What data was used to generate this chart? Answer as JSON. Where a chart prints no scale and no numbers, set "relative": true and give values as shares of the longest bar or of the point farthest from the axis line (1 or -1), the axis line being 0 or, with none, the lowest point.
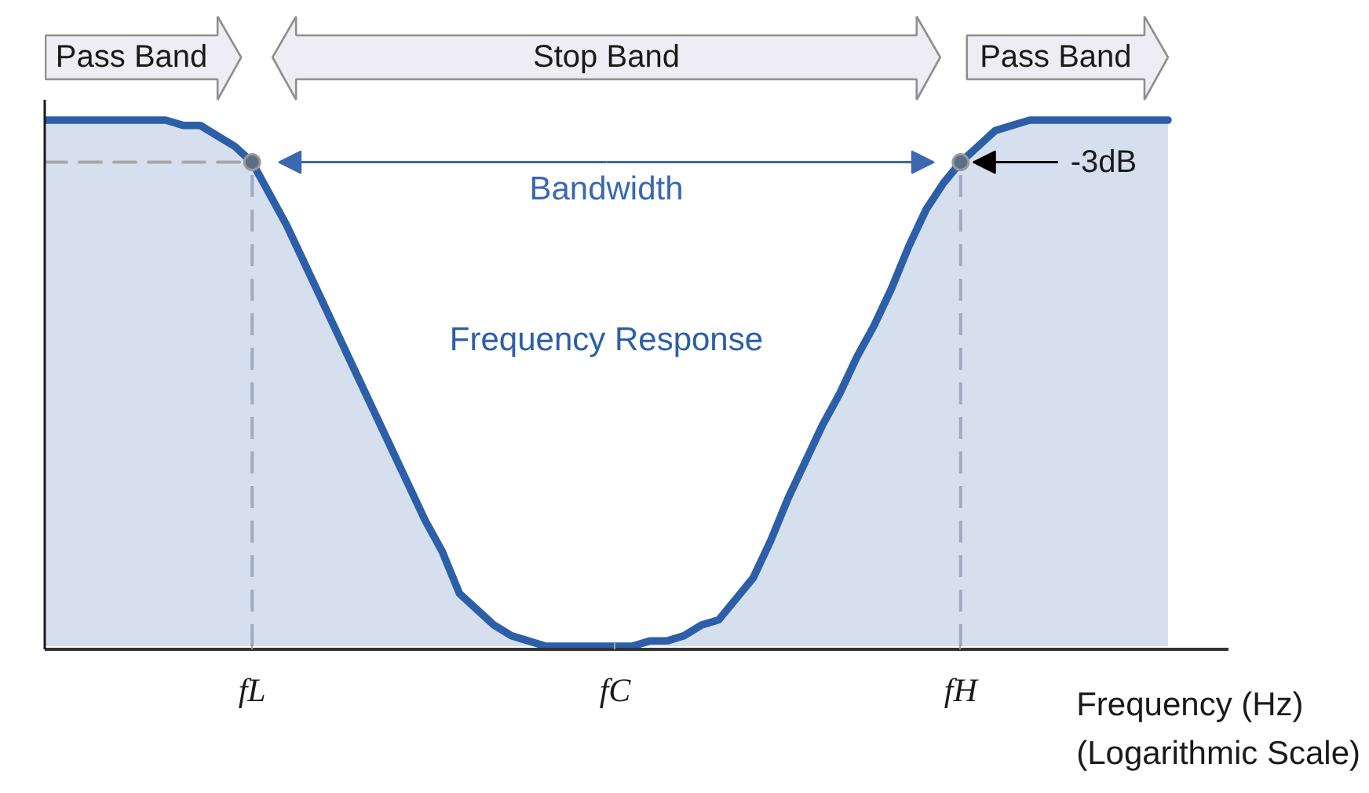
{
  "chart_data": {
    "type": "area",
    "relative": true,
    "tick_labels": "x",
    "xlabel": "Frequency (Hz)\n(Logarithmic Scale)",
    "categories": [
      null,
      null,
      null,
      null,
      null,
      null,
      null,
      null,
      null,
      null,
      null,
      null,
      "fL",
      null,
      null,
      null,
      null,
      null,
      null,
      null,
      null,
      null,
      null,
      null,
      null,
      null,
      null,
      null,
      null,
      null,
      null,
      null,
      null,
      "fC",
      null,
      null,
      null,
      null,
      null,
      null,
      null,
      null,
      null,
      null,
      null,
      null,
      null,
      null,
      null,
      null,
      null,
      null,
      null,
      "fH",
      null,
      null,
      null,
      null,
      null,
      null,
      null,
      null,
      null,
      null,
      null,
      null
    ],
    "series": [
      {
        "name": "Frequency Response",
        "color": "#2c5fa8",
        "values": [
          1,
          1,
          1,
          1,
          1,
          1,
          1,
          1,
          0.99,
          0.99,
          0.97,
          0.95,
          0.92,
          0.86,
          0.8,
          0.73,
          0.66,
          0.59,
          0.52,
          0.45,
          0.38,
          0.31,
          0.24,
          0.18,
          0.1,
          0.07,
          0.04,
          0.02,
          0.01,
          0,
          0,
          0,
          0,
          0,
          0,
          0.01,
          0.01,
          0.02,
          0.04,
          0.05,
          0.09,
          0.13,
          0.2,
          0.28,
          0.35,
          0.42,
          0.48,
          0.55,
          0.61,
          0.68,
          0.76,
          0.83,
          0.88,
          0.92,
          0.95,
          0.98,
          0.99,
          1,
          1,
          1,
          1,
          1,
          1,
          1,
          1,
          1
        ]
      },
      {
        "type": "line",
        "color": "#a8a8a8",
        "line_style": "dashed",
        "values": [
          0.92,
          0.92,
          0.92,
          0.92,
          0.92,
          0.92,
          0.92,
          0.92,
          0.92,
          0.92,
          0.92,
          0.92,
          0.92,
          null,
          null,
          null,
          null,
          null,
          null,
          null,
          null,
          null,
          null,
          null,
          null,
          null,
          null,
          null,
          null,
          null,
          null,
          null,
          null,
          null,
          null,
          null,
          null,
          null,
          null,
          null,
          null,
          null,
          null,
          null,
          null,
          null,
          null,
          null,
          null,
          null,
          null,
          null,
          null,
          null,
          null,
          null,
          null,
          null,
          null,
          null,
          null,
          null,
          null,
          null,
          null,
          null
        ]
      },
      {
        "type": "lollipop",
        "color": "#5d6f84",
        "line_style": "dashed",
        "marker": "circle",
        "values": [
          null,
          null,
          null,
          null,
          null,
          null,
          null,
          null,
          null,
          null,
          null,
          null,
          0.92,
          null,
          null,
          null,
          null,
          null,
          null,
          null,
          null,
          null,
          null,
          null,
          null,
          null,
          null,
          null,
          null,
          null,
          null,
          null,
          null,
          null,
          null,
          null,
          null,
          null,
          null,
          null,
          null,
          null,
          null,
          null,
          null,
          null,
          null,
          null,
          null,
          null,
          null,
          null,
          null,
          0.92,
          null,
          null,
          null,
          null,
          null,
          null,
          null,
          null,
          null,
          null,
          null,
          null
        ]
      }
    ],
    "annotations": [
      "Pass Band",
      "Stop Band",
      "Pass Band",
      "Bandwidth",
      "-3dB"
    ]
  }
}
